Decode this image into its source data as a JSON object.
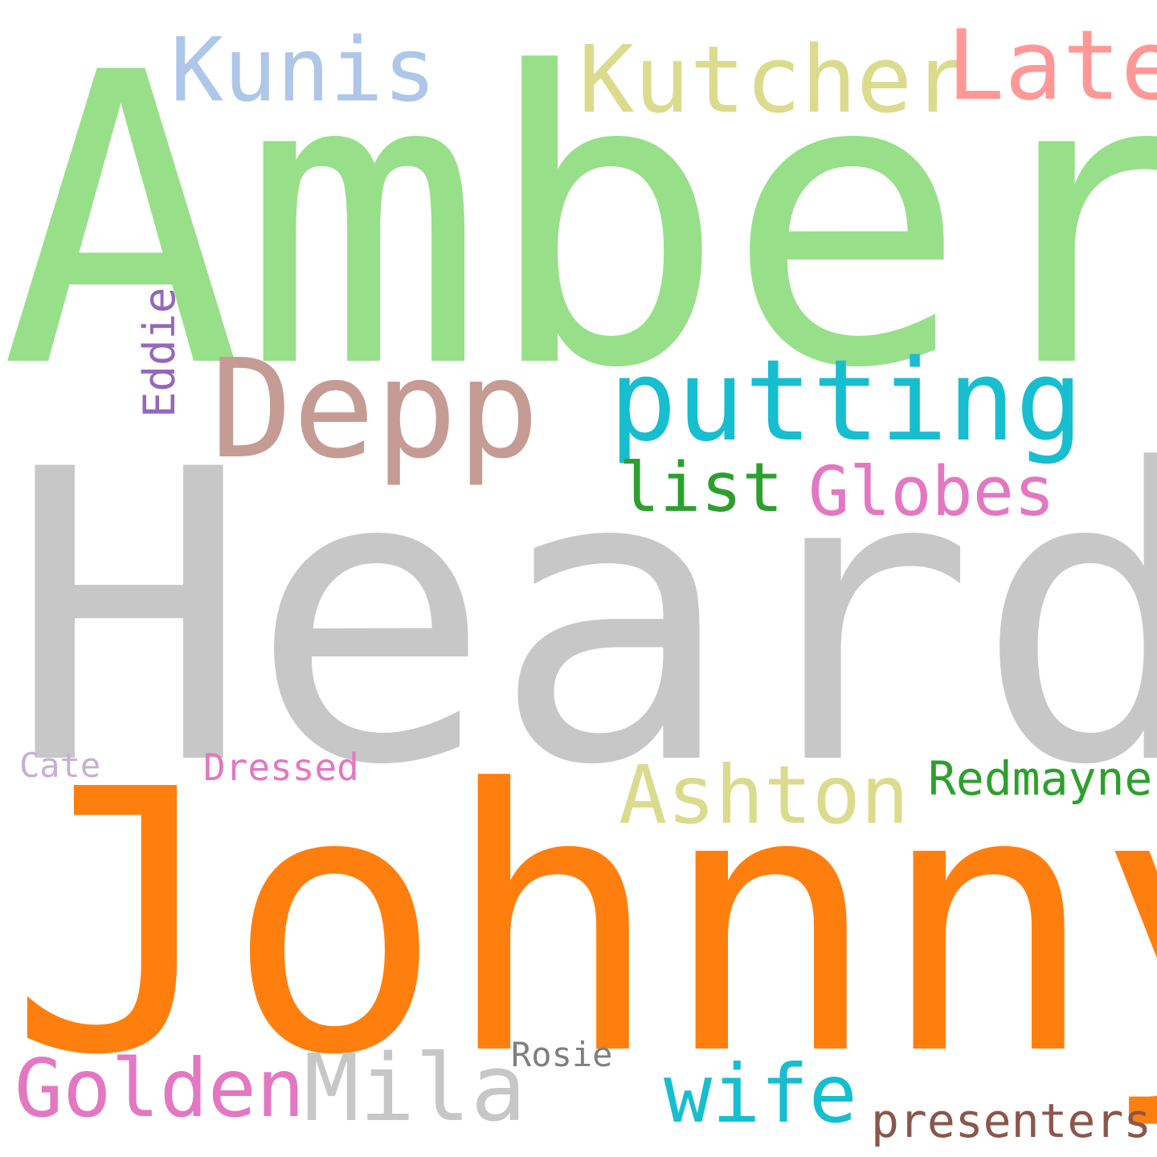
{
  "words": {
    "amber": {
      "text": "Amber",
      "color": "#98df8a"
    },
    "heard": {
      "text": "Heard",
      "color": "#c7c7c7"
    },
    "johnny": {
      "text": "Johnny",
      "color": "#ff7f0e"
    },
    "depp": {
      "text": "Depp",
      "color": "#c49c94"
    },
    "putting": {
      "text": "putting",
      "color": "#17becf"
    },
    "kunis": {
      "text": "Kunis",
      "color": "#aec7e8"
    },
    "kutcher": {
      "text": "Kutcher",
      "color": "#dbdb8d"
    },
    "late": {
      "text": "Late",
      "color": "#ff9896"
    },
    "list": {
      "text": "list",
      "color": "#2ca02c"
    },
    "globes": {
      "text": "Globes",
      "color": "#e377c2"
    },
    "ashton": {
      "text": "Ashton",
      "color": "#dbdb8d"
    },
    "redmayne": {
      "text": "Redmayne",
      "color": "#2ca02c"
    },
    "dressed": {
      "text": "Dressed",
      "color": "#e377c2"
    },
    "cate": {
      "text": "Cate",
      "color": "#c5b0d5"
    },
    "eddie": {
      "text": "Eddie",
      "color": "#9467bd"
    },
    "golden": {
      "text": "Golden",
      "color": "#e377c2"
    },
    "mila": {
      "text": "Mila",
      "color": "#c7c7c7"
    },
    "wife": {
      "text": "wife",
      "color": "#17becf"
    },
    "rosie": {
      "text": "Rosie",
      "color": "#7f7f7f"
    },
    "presenters": {
      "text": "presenters",
      "color": "#8c564b"
    }
  }
}
